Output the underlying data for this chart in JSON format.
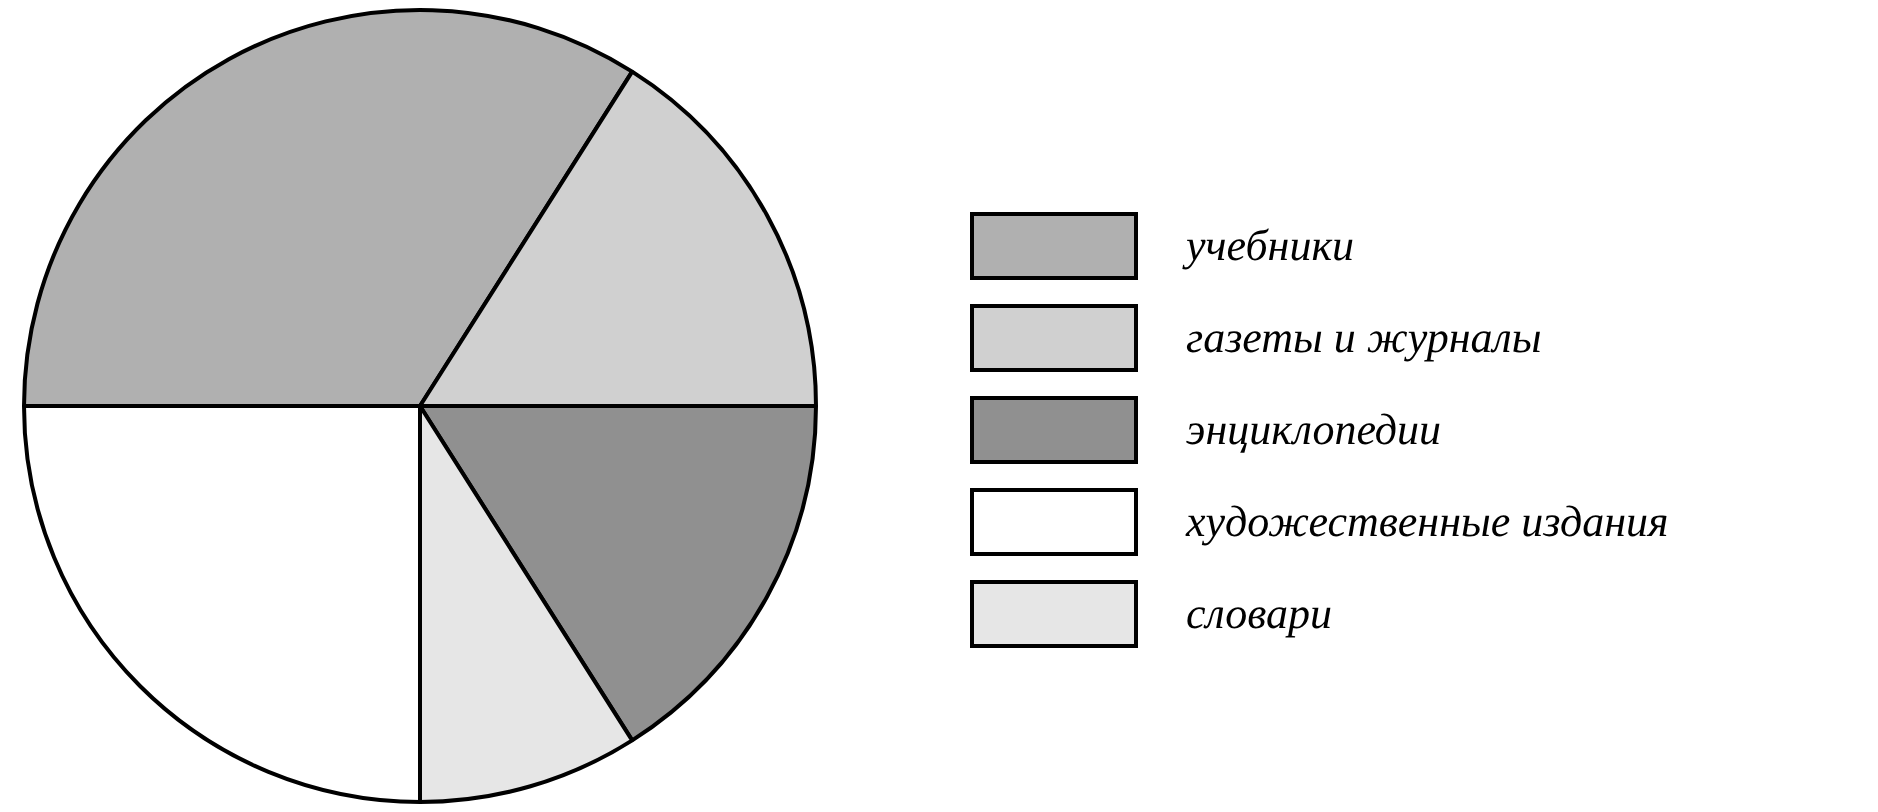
{
  "chart_data": {
    "type": "pie",
    "categories": [
      "учебники",
      "газеты и журналы",
      "энциклопедии",
      "художественные издания",
      "словари"
    ],
    "values": [
      34,
      16,
      16,
      25,
      9
    ],
    "colors": [
      "#b0b0b0",
      "#d0d0d0",
      "#909090",
      "#ffffff",
      "#e6e6e6"
    ],
    "legend": "right"
  }
}
